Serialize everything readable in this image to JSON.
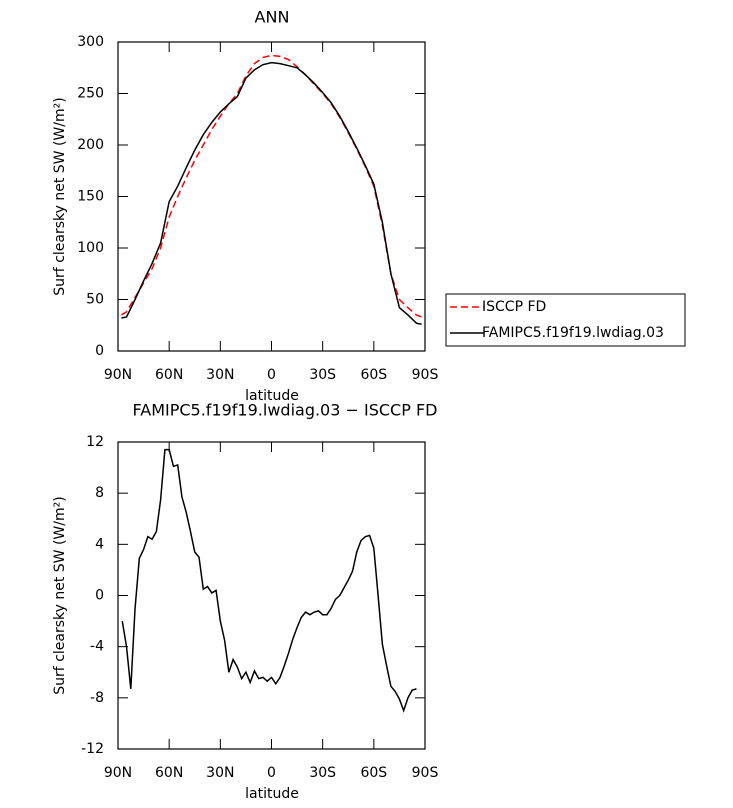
{
  "chart_data": [
    {
      "type": "line",
      "title": "ANN",
      "xlabel": "latitude",
      "ylabel": "Surf clearsky net SW (W/m²)",
      "x": [
        88,
        85,
        80,
        75,
        70,
        65,
        60,
        55,
        50,
        45,
        40,
        35,
        30,
        25,
        20,
        15,
        10,
        5,
        0,
        -5,
        -10,
        -15,
        -20,
        -25,
        -30,
        -35,
        -40,
        -45,
        -50,
        -55,
        -60,
        -65,
        -70,
        -75,
        -80,
        -85,
        -88
      ],
      "series": [
        {
          "name": "ISCCP FD",
          "color": "#ff0000",
          "linestyle": "dashed",
          "values": [
            35,
            38,
            52,
            66,
            80,
            100,
            130,
            150,
            168,
            185,
            200,
            215,
            228,
            240,
            250,
            267,
            279,
            285,
            287,
            286,
            283,
            276,
            268,
            259,
            250,
            240,
            227,
            212,
            196,
            179,
            160,
            122,
            75,
            50,
            42,
            35,
            33
          ]
        },
        {
          "name": "FAMIPC5.f19f19.lwdiag.03",
          "color": "#000000",
          "linestyle": "solid",
          "values": [
            32,
            33,
            50,
            68,
            85,
            105,
            145,
            160,
            178,
            195,
            210,
            222,
            232,
            240,
            247,
            265,
            273,
            278,
            280,
            279,
            277,
            275,
            268,
            260,
            251,
            241,
            228,
            213,
            197,
            180,
            162,
            125,
            75,
            42,
            35,
            27,
            26
          ]
        }
      ],
      "xlim": [
        90,
        -90
      ],
      "xticks": [
        {
          "value": 90,
          "label": "90N"
        },
        {
          "value": 60,
          "label": "60N"
        },
        {
          "value": 30,
          "label": "30N"
        },
        0,
        {
          "value": -30,
          "label": "30S"
        },
        {
          "value": -60,
          "label": "60S"
        },
        {
          "value": -90,
          "label": "90S"
        }
      ],
      "ylim": [
        0,
        300
      ],
      "yticks": [
        0,
        50,
        100,
        150,
        200,
        250,
        300
      ],
      "legend": "right"
    },
    {
      "type": "line",
      "title": "FAMIPC5.f19f19.lwdiag.03 − ISCCP FD",
      "xlabel": "latitude",
      "ylabel": "Surf clearsky net SW (W/m²)",
      "x": [
        87.5,
        85,
        82.5,
        80,
        77.5,
        75,
        72.5,
        70,
        67.5,
        65,
        62.5,
        60,
        57.5,
        55,
        52.5,
        50,
        47.5,
        45,
        42.5,
        40,
        37.5,
        35,
        32.5,
        30,
        27.5,
        25,
        22.5,
        20,
        17.5,
        15,
        12.5,
        10,
        7.5,
        5,
        2.5,
        0,
        -2.5,
        -5,
        -7.5,
        -10,
        -12.5,
        -15,
        -17.5,
        -20,
        -22.5,
        -25,
        -27.5,
        -30,
        -32.5,
        -35,
        -37.5,
        -40,
        -42.5,
        -45,
        -47.5,
        -50,
        -52.5,
        -55,
        -57.5,
        -60,
        -62.5,
        -65,
        -67.5,
        -70,
        -72.5,
        -75,
        -77.5,
        -80,
        -82.5,
        -85
      ],
      "series": [
        {
          "color": "#000000",
          "linestyle": "solid",
          "values": [
            -2,
            -4,
            -7.3,
            -1,
            2.9,
            3.6,
            4.6,
            4.4,
            5,
            7.5,
            11.4,
            11.4,
            10.1,
            10.2,
            7.7,
            6.5,
            5,
            3.4,
            3,
            0.5,
            0.7,
            0.2,
            0.4,
            -2,
            -3.5,
            -6,
            -5,
            -5.6,
            -6.5,
            -6,
            -6.8,
            -5.9,
            -6.5,
            -6.4,
            -6.7,
            -6.4,
            -6.9,
            -6.4,
            -5.5,
            -4.5,
            -3.4,
            -2.5,
            -1.7,
            -1.3,
            -1.5,
            -1.3,
            -1.2,
            -1.5,
            -1.5,
            -1,
            -0.3,
            0,
            0.6,
            1.2,
            1.9,
            3.4,
            4.3,
            4.6,
            4.7,
            3.7,
            0,
            -3.8,
            -5.5,
            -7.1,
            -7.5,
            -8.1,
            -9,
            -8,
            -7.4,
            -7.3
          ]
        }
      ],
      "xlim": [
        90,
        -90
      ],
      "xticks": [
        {
          "value": 90,
          "label": "90N"
        },
        {
          "value": 60,
          "label": "60N"
        },
        {
          "value": 30,
          "label": "30N"
        },
        0,
        {
          "value": -30,
          "label": "30S"
        },
        {
          "value": -60,
          "label": "60S"
        },
        {
          "value": -90,
          "label": "90S"
        }
      ],
      "ylim": [
        -12,
        12
      ],
      "yticks": [
        -12,
        -8,
        -4,
        0,
        4,
        8,
        12
      ]
    }
  ]
}
